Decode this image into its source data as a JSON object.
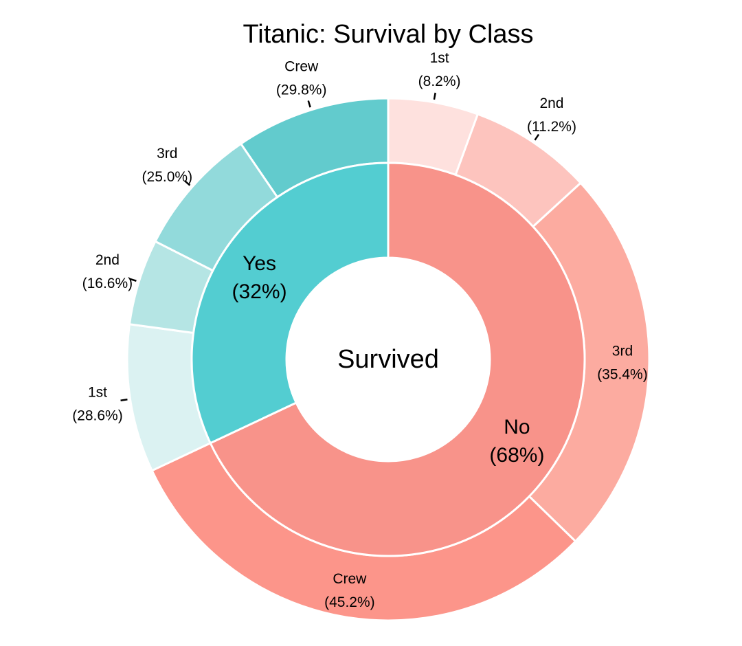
{
  "chart_data": {
    "type": "pie",
    "title": "Titanic: Survival by Class",
    "center_label": "Survived",
    "inner_ring": [
      {
        "name": "No",
        "percent_label": "(68%)",
        "value": 68,
        "color": "#F8938A"
      },
      {
        "name": "Yes",
        "percent_label": "(32%)",
        "value": 32,
        "color": "#53CDD1"
      }
    ],
    "outer_ring": [
      {
        "group": "No",
        "name": "1st",
        "percent_label": "(8.2%)",
        "value": 8.2,
        "color": "#FEE1DE"
      },
      {
        "group": "No",
        "name": "2nd",
        "percent_label": "(11.2%)",
        "value": 11.2,
        "color": "#FDC4BE"
      },
      {
        "group": "No",
        "name": "3rd",
        "percent_label": "(35.4%)",
        "value": 35.4,
        "color": "#FCABA0"
      },
      {
        "group": "No",
        "name": "Crew",
        "percent_label": "(45.2%)",
        "value": 45.2,
        "color": "#FC958A"
      },
      {
        "group": "Yes",
        "name": "1st",
        "percent_label": "(28.6%)",
        "value": 28.6,
        "color": "#DBF2F2"
      },
      {
        "group": "Yes",
        "name": "2nd",
        "percent_label": "(16.6%)",
        "value": 16.6,
        "color": "#B5E5E4"
      },
      {
        "group": "Yes",
        "name": "3rd",
        "percent_label": "(25.0%)",
        "value": 25.0,
        "color": "#92DADB"
      },
      {
        "group": "Yes",
        "name": "Crew",
        "percent_label": "(29.8%)",
        "value": 29.8,
        "color": "#62CBCD"
      }
    ]
  }
}
